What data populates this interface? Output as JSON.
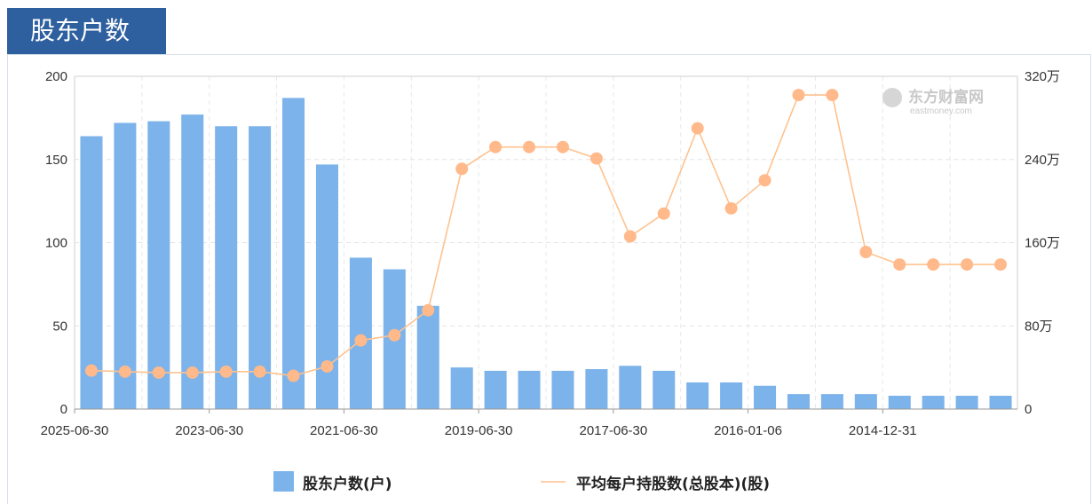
{
  "header": {
    "title": "股东户数"
  },
  "watermark": {
    "text": "东方财富网",
    "subtext": "eastmoney.com"
  },
  "colors": {
    "bar": "#7cb3ea",
    "line": "#ffc28f",
    "marker": "#ffb98a",
    "title_bg": "#2e5f9e"
  },
  "chart_data": {
    "type": "bar",
    "categories": [
      "2025-06-30",
      "",
      "",
      "",
      "2023-06-30",
      "",
      "",
      "",
      "2021-06-30",
      "",
      "",
      "",
      "2019-06-30",
      "",
      "",
      "",
      "2017-06-30",
      "",
      "",
      "",
      "2016-01-06",
      "",
      "",
      "",
      "2014-12-31",
      "",
      "",
      ""
    ],
    "x_tick_labels": [
      "2025-06-30",
      "2023-06-30",
      "2021-06-30",
      "2019-06-30",
      "2017-06-30",
      "2016-01-06",
      "2014-12-31"
    ],
    "left_axis": {
      "ylim": [
        0,
        200
      ],
      "ticks": [
        "0",
        "50",
        "100",
        "150",
        "200"
      ]
    },
    "right_axis": {
      "ylim": [
        0,
        320
      ],
      "ticks": [
        "0",
        "80万",
        "160万",
        "240万",
        "320万"
      ],
      "unit": "万"
    },
    "series": [
      {
        "name": "股东户数(户)",
        "type": "bar",
        "axis": "left",
        "values": [
          164,
          172,
          173,
          177,
          170,
          170,
          187,
          147,
          91,
          84,
          62,
          25,
          23,
          23,
          23,
          24,
          26,
          23,
          16,
          16,
          14,
          9,
          9,
          9,
          8,
          8,
          8,
          8
        ]
      },
      {
        "name": "平均每户持股数(总股本)(股)",
        "type": "line",
        "axis": "right",
        "values": [
          37,
          36,
          35,
          35,
          36,
          36,
          32,
          41,
          66,
          71,
          95,
          231,
          252,
          252,
          252,
          241,
          166,
          188,
          270,
          193,
          220,
          302,
          302,
          151,
          139,
          139,
          139,
          139
        ]
      }
    ],
    "grid": true,
    "legend_position": "bottom"
  }
}
